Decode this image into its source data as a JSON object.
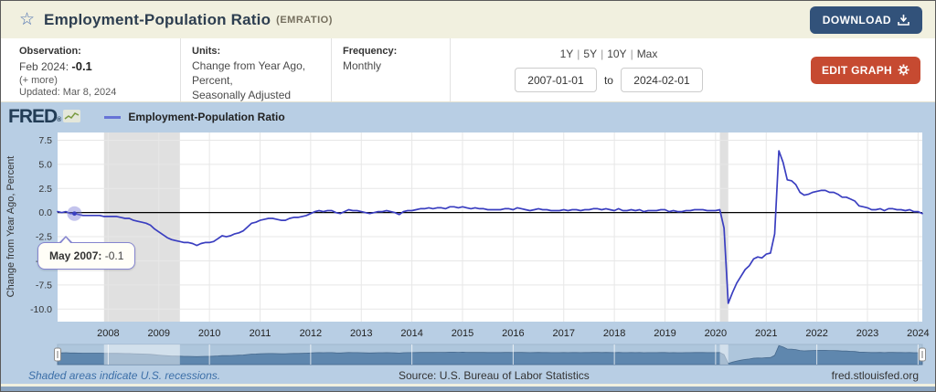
{
  "header": {
    "title": "Employment-Population Ratio",
    "series_id": "(EMRATIO)",
    "download_label": "DOWNLOAD"
  },
  "meta_panel": {
    "observation_label": "Observation:",
    "observation_date": "Feb 2024:",
    "observation_value": "-0.1",
    "more_link": "(+ more)",
    "updated": "Updated: Mar 8, 2024",
    "units_label": "Units:",
    "units_line1": "Change from Year Ago,",
    "units_line2": "Percent,",
    "units_line3": "Seasonally Adjusted",
    "frequency_label": "Frequency:",
    "frequency_value": "Monthly",
    "range_shortcuts": [
      "1Y",
      "5Y",
      "10Y",
      "Max"
    ],
    "range_separator": "|",
    "date_from": "2007-01-01",
    "to_label": "to",
    "date_to": "2024-02-01",
    "edit_graph_label": "EDIT GRAPH"
  },
  "chart_header": {
    "logo": "FRED",
    "logo_reg": "®",
    "legend_label": "Employment-Population Ratio"
  },
  "tooltip": {
    "label": "May 2007:",
    "value": "-0.1"
  },
  "footer": {
    "recession_note": "Shaded areas indicate U.S. recessions.",
    "source": "Source: U.S. Bureau of Labor Statistics",
    "site": "fred.stlouisfed.org"
  },
  "colors": {
    "line": "#3a3ec0",
    "recession_band": "#e0e0e0",
    "grid": "#e7e7e7",
    "zero_line": "#000000",
    "chart_bg": "#b8cee4",
    "plot_bg": "#ffffff",
    "header_bg": "#f1f0df",
    "download_button": "#32527a",
    "edit_button": "#c64a31",
    "nav_fill": "#5f87ae",
    "nav_stroke": "#46688c",
    "nav_track": "#aec6dc",
    "highlight_halo": "rgba(125,125,215,0.45)",
    "axis_text": "#333333"
  },
  "chart_data": {
    "type": "line",
    "title": "Employment-Population Ratio",
    "ylabel": "Change from Year Ago, Percent",
    "frequency": "monthly",
    "x_start": "2007-01",
    "x_end": "2024-02",
    "ylim": [
      -11.3,
      8.3
    ],
    "y_ticks": [
      7.5,
      5.0,
      2.5,
      0.0,
      -2.5,
      -5.0,
      -7.5,
      -10.0
    ],
    "x_ticks": [
      "2008",
      "2009",
      "2010",
      "2011",
      "2012",
      "2013",
      "2014",
      "2015",
      "2016",
      "2017",
      "2018",
      "2019",
      "2020",
      "2021",
      "2022",
      "2023",
      "2024"
    ],
    "grid": true,
    "legend_position": "top-left",
    "recessions": [
      {
        "start": "2007-12",
        "end": "2009-06"
      },
      {
        "start": "2020-02",
        "end": "2020-04"
      }
    ],
    "highlight": {
      "x": "2007-05",
      "value": -0.1
    },
    "values": [
      0.1,
      0.0,
      0.1,
      -0.1,
      -0.1,
      -0.2,
      -0.3,
      -0.3,
      -0.3,
      -0.3,
      -0.3,
      -0.4,
      -0.4,
      -0.4,
      -0.4,
      -0.5,
      -0.6,
      -0.6,
      -0.8,
      -0.9,
      -1.0,
      -1.1,
      -1.3,
      -1.7,
      -2.0,
      -2.3,
      -2.6,
      -2.8,
      -2.9,
      -3.0,
      -3.1,
      -3.1,
      -3.2,
      -3.4,
      -3.2,
      -3.1,
      -3.1,
      -3.0,
      -2.7,
      -2.4,
      -2.5,
      -2.4,
      -2.2,
      -2.1,
      -1.9,
      -1.5,
      -1.1,
      -1.0,
      -0.8,
      -0.7,
      -0.6,
      -0.6,
      -0.7,
      -0.8,
      -0.8,
      -0.6,
      -0.5,
      -0.5,
      -0.4,
      -0.3,
      -0.1,
      0.1,
      0.2,
      0.1,
      0.2,
      0.2,
      0.0,
      -0.1,
      0.1,
      0.3,
      0.2,
      0.2,
      0.1,
      0.0,
      -0.1,
      0.0,
      0.1,
      0.1,
      0.2,
      0.1,
      0.0,
      -0.2,
      0.1,
      0.2,
      0.2,
      0.3,
      0.4,
      0.4,
      0.5,
      0.4,
      0.5,
      0.5,
      0.4,
      0.6,
      0.6,
      0.5,
      0.6,
      0.5,
      0.4,
      0.5,
      0.4,
      0.4,
      0.3,
      0.3,
      0.3,
      0.3,
      0.4,
      0.4,
      0.3,
      0.5,
      0.4,
      0.3,
      0.2,
      0.3,
      0.4,
      0.3,
      0.3,
      0.2,
      0.2,
      0.2,
      0.3,
      0.2,
      0.3,
      0.3,
      0.2,
      0.3,
      0.3,
      0.4,
      0.4,
      0.3,
      0.4,
      0.3,
      0.2,
      0.4,
      0.2,
      0.2,
      0.3,
      0.2,
      0.3,
      0.1,
      0.2,
      0.2,
      0.2,
      0.3,
      0.3,
      0.1,
      0.2,
      0.1,
      0.1,
      0.2,
      0.2,
      0.3,
      0.3,
      0.3,
      0.2,
      0.2,
      0.2,
      0.3,
      -1.6,
      -9.4,
      -8.3,
      -7.3,
      -6.6,
      -5.9,
      -5.5,
      -4.8,
      -4.6,
      -4.7,
      -4.3,
      -4.2,
      -2.2,
      6.4,
      5.2,
      3.4,
      3.3,
      2.9,
      2.1,
      1.8,
      1.9,
      2.1,
      2.2,
      2.3,
      2.3,
      2.1,
      2.1,
      1.9,
      1.6,
      1.6,
      1.4,
      1.2,
      0.7,
      0.6,
      0.5,
      0.3,
      0.3,
      0.4,
      0.2,
      0.4,
      0.4,
      0.3,
      0.3,
      0.2,
      0.3,
      0.1,
      0.1,
      -0.1
    ]
  }
}
